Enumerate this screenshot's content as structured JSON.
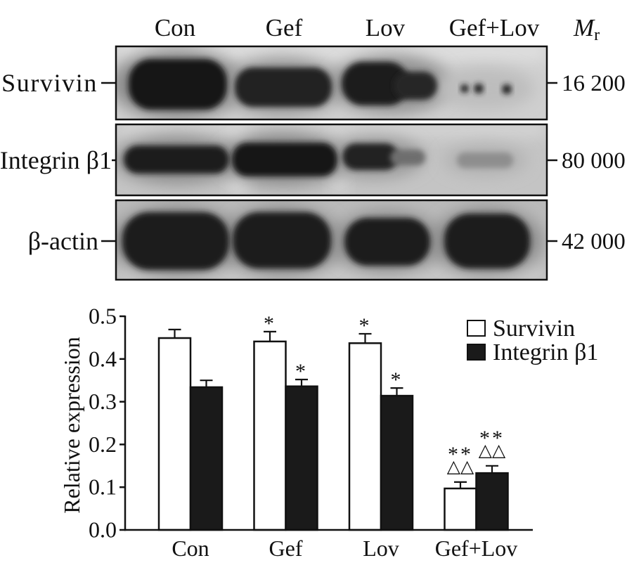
{
  "blot": {
    "lanes": [
      "Con",
      "Gef",
      "Lov",
      "Gef+Lov"
    ],
    "mr_label": {
      "main": "M",
      "sub": "r"
    },
    "rows": [
      {
        "protein": "Survivin",
        "mr": "16 200"
      },
      {
        "protein": "Integrin β1",
        "mr": "80 000"
      },
      {
        "protein": "β-actin",
        "mr": "42 000"
      }
    ]
  },
  "chart_data": {
    "type": "bar",
    "categories": [
      "Con",
      "Gef",
      "Lov",
      "Gef+Lov"
    ],
    "ylabel": "Relative expression",
    "ylim": [
      0,
      0.5
    ],
    "yticks": [
      0,
      0.1,
      0.2,
      0.3,
      0.4,
      0.5
    ],
    "ytick_labels": [
      "0.0",
      "0.1",
      "0.2",
      "0.3",
      "0.4",
      "0.5"
    ],
    "grid": false,
    "legend_position": "top-right",
    "series": [
      {
        "name": "Survivin",
        "color": "#ffffff",
        "values": [
          0.449,
          0.441,
          0.437,
          0.097
        ],
        "errors": [
          0.02,
          0.023,
          0.022,
          0.015
        ],
        "annotations": [
          [],
          [
            "*"
          ],
          [
            "*"
          ],
          [
            "**",
            "△△"
          ]
        ]
      },
      {
        "name": "Integrin β1",
        "color": "#1a1a1a",
        "values": [
          0.334,
          0.336,
          0.314,
          0.133
        ],
        "errors": [
          0.016,
          0.016,
          0.018,
          0.017
        ],
        "annotations": [
          [],
          [
            "*"
          ],
          [
            "*"
          ],
          [
            "**",
            "△△"
          ]
        ]
      }
    ]
  }
}
